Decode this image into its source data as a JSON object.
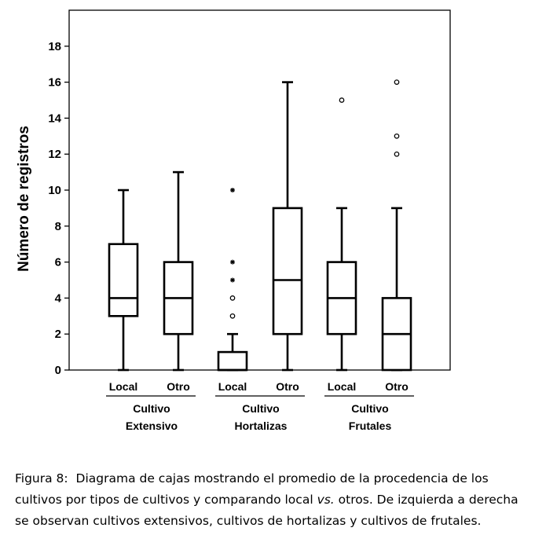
{
  "chart_data": {
    "type": "box",
    "ylabel": "Número de registros",
    "ylim": [
      0,
      20
    ],
    "yticks": [
      0,
      2,
      4,
      6,
      8,
      10,
      12,
      14,
      16,
      18
    ],
    "grid": false,
    "groups": [
      {
        "label_line1": "Cultivo",
        "label_line2": "Extensivo",
        "categories": [
          "Local",
          "Otro"
        ]
      },
      {
        "label_line1": "Cultivo",
        "label_line2": "Hortalizas",
        "categories": [
          "Local",
          "Otro"
        ]
      },
      {
        "label_line1": "Cultivo",
        "label_line2": "Frutales",
        "categories": [
          "Local",
          "Otro"
        ]
      }
    ],
    "boxes": [
      {
        "name": "Cultivo Extensivo - Local",
        "label": "Local",
        "min": 0,
        "q1": 3,
        "median": 4,
        "q3": 7,
        "max": 10,
        "outliers": [],
        "extremes": []
      },
      {
        "name": "Cultivo Extensivo - Otro",
        "label": "Otro",
        "min": 0,
        "q1": 2,
        "median": 4,
        "q3": 6,
        "max": 11,
        "outliers": [],
        "extremes": []
      },
      {
        "name": "Cultivo Hortalizas - Local",
        "label": "Local",
        "min": 0,
        "q1": 0,
        "median": 0,
        "q3": 1,
        "max": 2,
        "outliers": [
          3,
          4
        ],
        "extremes": [
          5,
          6,
          10
        ]
      },
      {
        "name": "Cultivo Hortalizas - Otro",
        "label": "Otro",
        "min": 0,
        "q1": 2,
        "median": 5,
        "q3": 9,
        "max": 16,
        "outliers": [],
        "extremes": []
      },
      {
        "name": "Cultivo Frutales - Local",
        "label": "Local",
        "min": 0,
        "q1": 2,
        "median": 4,
        "q3": 6,
        "max": 9,
        "outliers": [
          15
        ],
        "extremes": []
      },
      {
        "name": "Cultivo Frutales - Otro",
        "label": "Otro",
        "min": 0,
        "q1": 0,
        "median": 2,
        "q3": 4,
        "max": 9,
        "outliers": [
          12,
          13,
          16
        ],
        "extremes": []
      }
    ]
  },
  "caption": {
    "label": "Figura 8",
    "separator": ":",
    "text_part1": "Diagrama de cajas mostrando el promedio de la procedencia de los cultivos por tipos de cultivos y comparando local ",
    "vs": "vs.",
    "text_part2": " otros. De izquierda a derecha se observan cultivos extensivos, cultivos de hortalizas y cultivos de frutales."
  }
}
